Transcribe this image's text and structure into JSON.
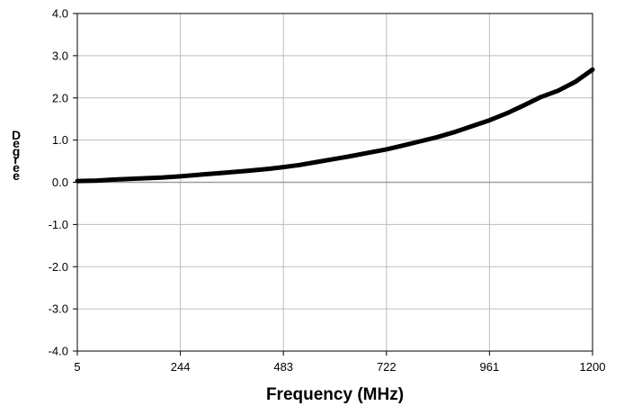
{
  "chart_data": {
    "type": "line",
    "title": "",
    "xlabel": "Frequency (MHz)",
    "ylabel": "Degree",
    "xlim": [
      5,
      1200
    ],
    "ylim": [
      -4.0,
      4.0
    ],
    "x_ticks": [
      "5",
      "244",
      "483",
      "722",
      "961",
      "1200"
    ],
    "y_ticks": [
      "4.0",
      "3.0",
      "2.0",
      "1.0",
      "0.0",
      "-1.0",
      "-2.0",
      "-3.0",
      "-4.0"
    ],
    "grid": true,
    "legend": "none",
    "series": [
      {
        "color": "#000000",
        "x": [
          5,
          50,
          100,
          150,
          200,
          244,
          300,
          350,
          400,
          450,
          483,
          520,
          560,
          600,
          640,
          680,
          722,
          760,
          800,
          840,
          880,
          920,
          961,
          1000,
          1040,
          1080,
          1120,
          1160,
          1200
        ],
        "y": [
          0.03,
          0.04,
          0.07,
          0.09,
          0.11,
          0.14,
          0.19,
          0.23,
          0.27,
          0.32,
          0.36,
          0.41,
          0.48,
          0.55,
          0.62,
          0.7,
          0.78,
          0.87,
          0.97,
          1.07,
          1.19,
          1.33,
          1.47,
          1.63,
          1.82,
          2.02,
          2.17,
          2.38,
          2.67
        ]
      }
    ]
  }
}
